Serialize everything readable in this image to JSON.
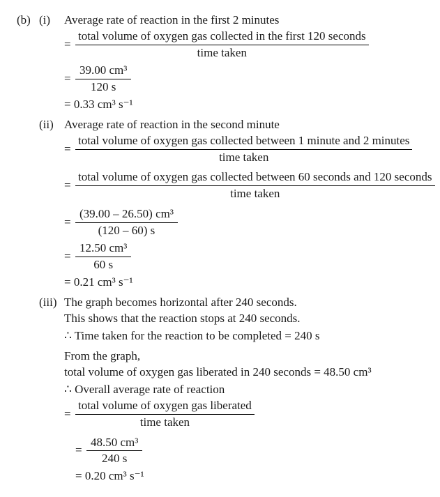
{
  "part": "(b)",
  "i": {
    "label": "(i)",
    "title": "Average rate of reaction in the first 2 minutes",
    "frac1_num": "total volume of oxygen gas collected in the first 120 seconds",
    "frac1_den": "time taken",
    "frac2_num": "39.00 cm³",
    "frac2_den": "120 s",
    "result": "= 0.33 cm³ s⁻¹"
  },
  "ii": {
    "label": "(ii)",
    "title": "Average rate of reaction in the second minute",
    "frac1_num": "total volume of oxygen gas collected between 1 minute and 2 minutes",
    "frac1_den": "time taken",
    "frac2_num": "total volume of oxygen gas collected between 60 seconds and 120 seconds",
    "frac2_den": "time taken",
    "frac3_num": "(39.00 – 26.50) cm³",
    "frac3_den": "(120 – 60) s",
    "frac4_num": "12.50 cm³",
    "frac4_den": "60 s",
    "result": "= 0.21 cm³ s⁻¹"
  },
  "iii": {
    "label": "(iii)",
    "line1": "The graph becomes horizontal after 240 seconds.",
    "line2": "This shows that the reaction stops at 240 seconds.",
    "line3": "∴ Time taken for the reaction to be completed = 240 s",
    "line4": "From the graph,",
    "line5": "total volume of oxygen gas liberated in 240 seconds = 48.50 cm³",
    "line6": "∴ Overall average rate of reaction",
    "frac1_num": "total volume of oxygen gas liberated",
    "frac1_den": "time taken",
    "frac2_num": "48.50 cm³",
    "frac2_den": "240 s",
    "result": "= 0.20 cm³ s⁻¹"
  },
  "eq": "="
}
